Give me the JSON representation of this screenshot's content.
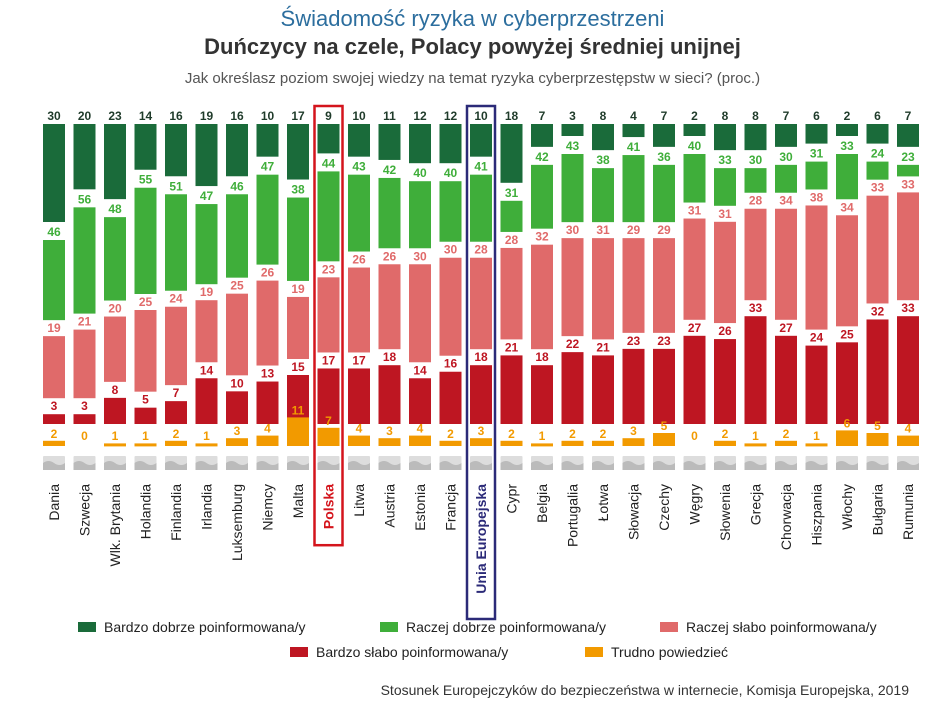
{
  "title": "Świadomość ryzyka w cyberprzestrzeni",
  "subtitle": "Duńczycy na czele, Polacy powyżej średniej unijnej",
  "question": "Jak określasz poziom swojej wiedzy na temat ryzyka cyberprzestępstw w sieci? (proc.)",
  "source": "Stosunek Europejczyków do bezpieczeństwa w internecie, Komisja Europejska, 2019",
  "colors": {
    "very_well": "#1a6b3a",
    "fairly_well": "#3fae3a",
    "fairly_poor": "#e06a6a",
    "very_poor": "#be1622",
    "dont_know": "#f29a00",
    "poland_box": "#d4141c",
    "eu_box": "#2b2a78"
  },
  "chart_data": {
    "type": "bar",
    "stacked": true,
    "categories": [
      "Dania",
      "Szwecja",
      "Wlk. Brytania",
      "Holandia",
      "Finlandia",
      "Irlandia",
      "Luksemburg",
      "Niemcy",
      "Malta",
      "Polska",
      "Litwa",
      "Austria",
      "Estonia",
      "Francja",
      "Unia Europejska",
      "Cypr",
      "Belgia",
      "Portugalia",
      "Łotwa",
      "Słowacja",
      "Czechy",
      "Węgry",
      "Słowenia",
      "Grecja",
      "Chorwacja",
      "Hiszpania",
      "Włochy",
      "Bułgaria",
      "Rumunia"
    ],
    "highlighted": [
      "Polska",
      "Unia Europejska"
    ],
    "series": [
      {
        "name": "Bardzo dobrze poinformowana/y",
        "key": "very_well",
        "values": [
          30,
          20,
          23,
          14,
          16,
          19,
          16,
          10,
          17,
          9,
          10,
          11,
          12,
          12,
          10,
          18,
          7,
          3,
          8,
          4,
          7,
          2,
          8,
          8,
          7,
          6,
          2,
          6,
          7
        ]
      },
      {
        "name": "Raczej dobrze poinformowana/y",
        "key": "fairly_well",
        "values": [
          46,
          56,
          48,
          55,
          51,
          47,
          46,
          47,
          38,
          44,
          43,
          42,
          40,
          40,
          41,
          31,
          42,
          43,
          38,
          41,
          36,
          40,
          33,
          30,
          30,
          31,
          33,
          24,
          23
        ]
      },
      {
        "name": "Raczej słabo poinformowana/y",
        "key": "fairly_poor",
        "values": [
          19,
          21,
          20,
          25,
          24,
          19,
          25,
          26,
          19,
          23,
          26,
          26,
          30,
          30,
          28,
          28,
          32,
          30,
          31,
          29,
          29,
          31,
          31,
          28,
          34,
          38,
          34,
          33,
          33
        ]
      },
      {
        "name": "Bardzo słabo poinformowana/y",
        "key": "very_poor",
        "values": [
          3,
          3,
          8,
          5,
          7,
          14,
          10,
          13,
          15,
          17,
          17,
          18,
          14,
          16,
          18,
          21,
          18,
          22,
          21,
          23,
          23,
          27,
          26,
          33,
          27,
          24,
          25,
          32,
          33
        ]
      },
      {
        "name": "Trudno powiedzieć",
        "key": "dont_know",
        "values": [
          2,
          0,
          1,
          1,
          2,
          1,
          3,
          4,
          11,
          7,
          4,
          3,
          4,
          2,
          3,
          2,
          1,
          2,
          2,
          3,
          5,
          0,
          2,
          1,
          2,
          1,
          6,
          5,
          4
        ]
      }
    ],
    "ylim": [
      0,
      100
    ],
    "legend_position": "bottom",
    "xlabel": "",
    "ylabel": ""
  }
}
